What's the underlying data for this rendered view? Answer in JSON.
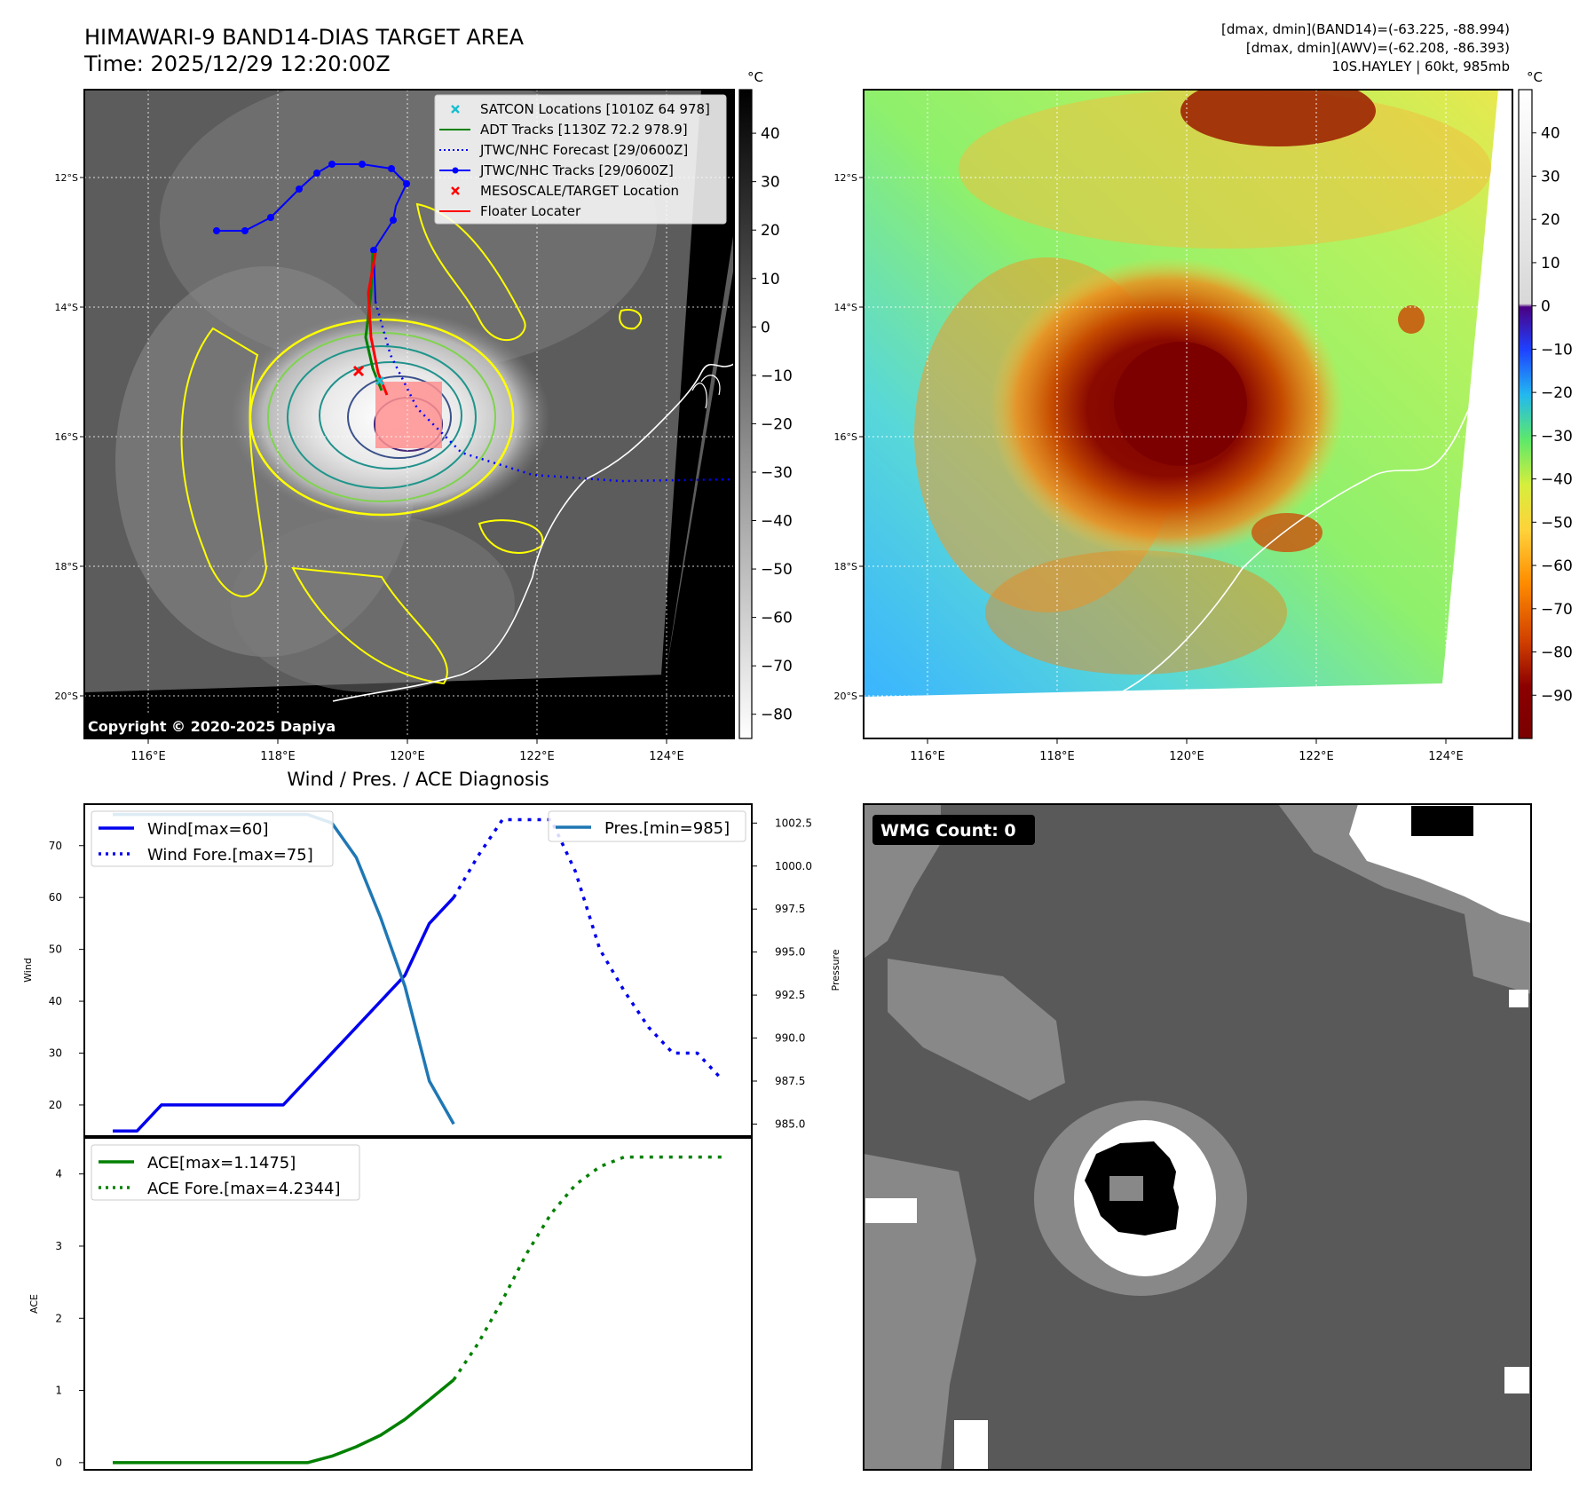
{
  "header": {
    "title_line1": "HIMAWARI-9 BAND14-DIAS TARGET AREA",
    "title_line2": "Time: 2025/12/29 12:20:00Z",
    "stats_line1": "[dmax, dmin](BAND14)=(-63.225, -88.994)",
    "stats_line2": "[dmax, dmin](AWV)=(-62.208, -86.393)",
    "stats_line3": "10S.HAYLEY | 60kt, 985mb"
  },
  "maps": {
    "lat_labels": [
      "12°S",
      "14°S",
      "16°S",
      "18°S",
      "20°S"
    ],
    "lon_labels": [
      "116°E",
      "118°E",
      "120°E",
      "122°E",
      "124°E"
    ],
    "copyright": "Copyright © 2020-2025 Dapiya",
    "colorbar_unit": "°C",
    "gray_colorbar_ticks": [
      "40",
      "30",
      "20",
      "10",
      "0",
      "−10",
      "−20",
      "−30",
      "−40",
      "−50",
      "−60",
      "−70",
      "−80"
    ],
    "color_colorbar_ticks": [
      "40",
      "30",
      "20",
      "10",
      "0",
      "−10",
      "−20",
      "−30",
      "−40",
      "−50",
      "−60",
      "−70",
      "−80",
      "−90"
    ],
    "legend": [
      {
        "label": "SATCON Locations [1010Z 64 978]",
        "color": "#17becf",
        "kind": "x"
      },
      {
        "label": "ADT Tracks [1130Z 72.2 978.9]",
        "color": "#008000",
        "kind": "line"
      },
      {
        "label": "JTWC/NHC Forecast [29/0600Z]",
        "color": "#0000ff",
        "kind": "dotted"
      },
      {
        "label": "JTWC/NHC Tracks [29/0600Z]",
        "color": "#0000ff",
        "kind": "line-dot"
      },
      {
        "label": "MESOSCALE/TARGET Location",
        "color": "#ff0000",
        "kind": "x"
      },
      {
        "label": "Floater Locater",
        "color": "#ff0000",
        "kind": "line"
      }
    ],
    "track_color": "#0000ff",
    "contour_colors": [
      "#ffff00",
      "#7fd34e",
      "#1f968b",
      "#3b528b",
      "#482878"
    ]
  },
  "wmg": {
    "label": "WMG Count: 0"
  },
  "diagnosis": {
    "title": "Wind / Pres. / ACE Diagnosis",
    "wind_axis_label": "Wind",
    "pressure_axis_label": "Pressure",
    "ace_axis_label": "ACE",
    "wind_legend": [
      "Wind[max=60]",
      "Wind Fore.[max=75]"
    ],
    "pres_legend": "Pres.[min=985]",
    "ace_legend": [
      "ACE[max=1.1475]",
      "ACE Fore.[max=4.2344]"
    ]
  },
  "chart_data": [
    {
      "type": "line",
      "title": "Wind / Pres. / ACE Diagnosis",
      "ylabel": "Wind",
      "y2label": "Pressure",
      "ylim": [
        14,
        78
      ],
      "y2lim": [
        984.3,
        1003.6
      ],
      "yticks": [
        20,
        30,
        40,
        50,
        60,
        70
      ],
      "y2ticks": [
        "985.0",
        "987.5",
        "990.0",
        "992.5",
        "995.0",
        "997.5",
        "1000.0",
        "1002.5"
      ],
      "x": [
        0,
        1,
        2,
        3,
        4,
        5,
        6,
        7,
        8,
        9,
        10,
        11,
        12,
        13,
        14,
        15,
        16,
        17,
        18,
        19,
        20,
        21,
        22,
        23,
        24,
        25
      ],
      "series": [
        {
          "name": "Wind[max=60]",
          "axis": "left",
          "style": "solid",
          "color": "#0000ee",
          "x": [
            0,
            1,
            2,
            3,
            4,
            5,
            6,
            7,
            8,
            9,
            10,
            11,
            12,
            13,
            14
          ],
          "values": [
            15,
            15,
            20,
            20,
            20,
            20,
            20,
            20,
            25,
            30,
            35,
            40,
            45,
            55,
            60
          ]
        },
        {
          "name": "Wind Fore.[max=75]",
          "axis": "left",
          "style": "dotted",
          "color": "#0000ee",
          "x": [
            14,
            15,
            16,
            17,
            18,
            19,
            20,
            21,
            22,
            23,
            24,
            25
          ],
          "values": [
            60,
            68,
            75,
            75,
            75,
            65,
            50,
            42,
            35,
            30,
            30,
            25
          ]
        },
        {
          "name": "Pres.[min=985]",
          "axis": "right",
          "style": "solid",
          "color": "#1f77b4",
          "x": [
            0,
            1,
            2,
            3,
            4,
            5,
            6,
            7,
            8,
            9,
            10,
            11,
            12,
            13,
            14
          ],
          "values": [
            1003,
            1003,
            1003,
            1003,
            1003,
            1003,
            1003,
            1003,
            1003,
            1002.5,
            1000.5,
            997,
            993,
            987.5,
            985
          ]
        }
      ]
    },
    {
      "type": "line",
      "ylabel": "ACE",
      "ylim": [
        -0.1,
        4.5
      ],
      "yticks": [
        0,
        1,
        2,
        3,
        4
      ],
      "series": [
        {
          "name": "ACE[max=1.1475]",
          "style": "solid",
          "color": "#008000",
          "x": [
            0,
            1,
            2,
            3,
            4,
            5,
            6,
            7,
            8,
            9,
            10,
            11,
            12,
            13,
            14
          ],
          "values": [
            0,
            0,
            0,
            0,
            0,
            0,
            0,
            0,
            0,
            0.09,
            0.22,
            0.38,
            0.6,
            0.87,
            1.1475
          ]
        },
        {
          "name": "ACE Fore.[max=4.2344]",
          "style": "dotted",
          "color": "#008000",
          "x": [
            14,
            15,
            16,
            17,
            18,
            19,
            20,
            21,
            22,
            23,
            24,
            25
          ],
          "values": [
            1.1475,
            1.65,
            2.25,
            2.9,
            3.45,
            3.85,
            4.1,
            4.2344,
            4.2344,
            4.2344,
            4.2344,
            4.2344
          ]
        }
      ]
    }
  ]
}
